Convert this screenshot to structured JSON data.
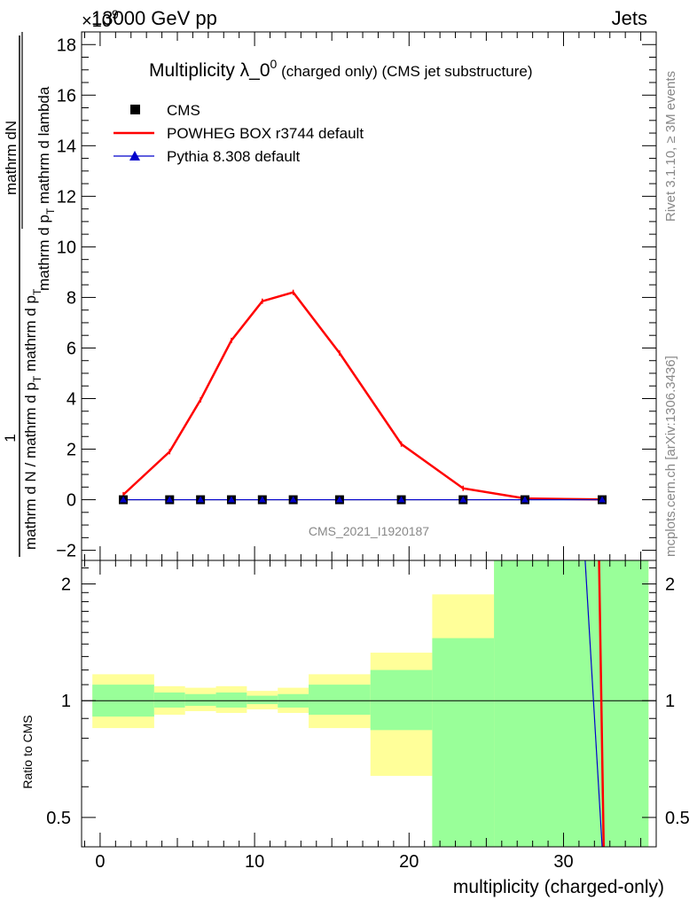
{
  "header": {
    "left": "13000 GeV pp",
    "right": "Jets",
    "exponent": "×10",
    "exponent_power": "9"
  },
  "side_labels": {
    "rivet": "Rivet 3.1.10, ≥ 3M events",
    "mcplots": "mcplots.cern.ch [arXiv:1306.3436]"
  },
  "analysis_id": "CMS_2021_I1920187",
  "chart_data": [
    {
      "type": "line",
      "title_main": "Multiplicity λ_0",
      "title_sup": "0",
      "title_rest": " (charged only) (CMS jet substructure)",
      "ylabel_num": "mathrm dN",
      "ylabel_den1": "mathrm d p",
      "ylabel_den1_sub": "T",
      "ylabel_den1_rest": " mathrm d lambda",
      "ylabel_outer_num": "1",
      "ylabel_outer_den": "mathrm d N / mathrm d p",
      "ylabel_outer_den_sub": "T",
      "ylabel_outer_den_rest": " mathrm d p",
      "ylabel_outer_den_sub2": "T",
      "ylim": [
        -2.4,
        18.5
      ],
      "xlim": [
        -1.2,
        36
      ],
      "yticks": [
        -2,
        0,
        2,
        4,
        6,
        8,
        10,
        12,
        14,
        16,
        18
      ],
      "legend": [
        {
          "name": "CMS",
          "color": "#000000",
          "marker": "square"
        },
        {
          "name": "POWHEG BOX r3744 default",
          "color": "#ff0000",
          "marker": "line"
        },
        {
          "name": "Pythia 8.308 default",
          "color": "#0000cc",
          "marker": "triangle"
        }
      ],
      "x": [
        1.5,
        4.5,
        6.5,
        8.5,
        10.5,
        12.5,
        15.5,
        19.5,
        23.5,
        27.5,
        32.5
      ],
      "series": [
        {
          "name": "CMS",
          "color": "#000000",
          "values": [
            0,
            0,
            0,
            0,
            0,
            0,
            0,
            0,
            0,
            0,
            0
          ]
        },
        {
          "name": "POWHEG BOX r3744 default",
          "color": "#ff0000",
          "values": [
            0.2,
            1.9,
            3.95,
            6.3,
            7.85,
            8.2,
            5.8,
            2.2,
            0.45,
            0.05,
            0.01
          ]
        },
        {
          "name": "Pythia 8.308 default",
          "color": "#0000cc",
          "values": [
            0,
            0,
            0,
            0,
            0,
            0,
            0,
            0,
            0,
            0,
            0
          ]
        }
      ]
    },
    {
      "type": "area",
      "ylabel": "Ratio to CMS",
      "xlabel": "multiplicity (charged-only)",
      "log_y": true,
      "ylim": [
        0.42,
        2.3
      ],
      "yticks": [
        0.5,
        1,
        2
      ],
      "ytick_labels": [
        "0.5",
        "1",
        "2"
      ],
      "xticks": [
        0,
        10,
        20,
        30
      ],
      "xtick_labels": [
        "0",
        "10",
        "20",
        "30"
      ],
      "bins": [
        {
          "lo": -0.5,
          "hi": 3.5,
          "green": [
            0.91,
            1.1
          ],
          "yellow": [
            0.85,
            1.17
          ]
        },
        {
          "lo": 3.5,
          "hi": 5.5,
          "green": [
            0.96,
            1.05
          ],
          "yellow": [
            0.92,
            1.09
          ]
        },
        {
          "lo": 5.5,
          "hi": 7.5,
          "green": [
            0.97,
            1.04
          ],
          "yellow": [
            0.94,
            1.08
          ]
        },
        {
          "lo": 7.5,
          "hi": 9.5,
          "green": [
            0.96,
            1.05
          ],
          "yellow": [
            0.93,
            1.09
          ]
        },
        {
          "lo": 9.5,
          "hi": 11.5,
          "green": [
            0.98,
            1.03
          ],
          "yellow": [
            0.95,
            1.06
          ]
        },
        {
          "lo": 11.5,
          "hi": 13.5,
          "green": [
            0.96,
            1.04
          ],
          "yellow": [
            0.93,
            1.08
          ]
        },
        {
          "lo": 13.5,
          "hi": 17.5,
          "green": [
            0.92,
            1.1
          ],
          "yellow": [
            0.85,
            1.17
          ]
        },
        {
          "lo": 17.5,
          "hi": 21.5,
          "green": [
            0.84,
            1.2
          ],
          "yellow": [
            0.64,
            1.33
          ]
        },
        {
          "lo": 21.5,
          "hi": 25.5,
          "green": [
            0.42,
            1.45
          ],
          "yellow": [
            0.42,
            1.88
          ]
        },
        {
          "lo": 25.5,
          "hi": 35.5,
          "green": [
            0.42,
            2.3
          ],
          "yellow": [
            0.42,
            2.3
          ]
        }
      ],
      "ratio_lines": [
        {
          "name": "POWHEG BOX r3744 default",
          "color": "#ff0000",
          "from": [
            32.3,
            2.3
          ],
          "to": [
            32.6,
            0.42
          ]
        },
        {
          "name": "Pythia 8.308 default",
          "color": "#0000cc",
          "from": [
            31.4,
            2.3
          ],
          "to": [
            32.5,
            0.42
          ]
        }
      ]
    }
  ]
}
